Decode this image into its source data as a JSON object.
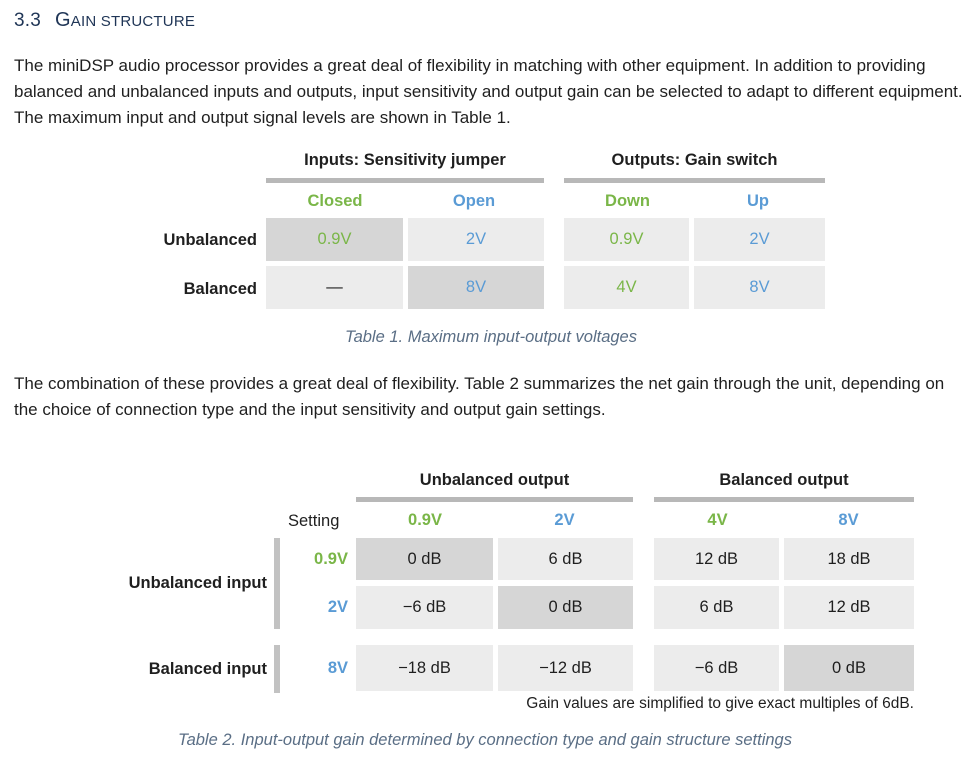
{
  "section": {
    "number": "3.3",
    "title_first": "G",
    "title_rest": "AIN STRUCTURE"
  },
  "paragraphs": [
    "The miniDSP audio processor provides a great deal of flexibility in matching with other equipment. In addition to providing balanced and unbalanced inputs and outputs, input sensitivity and output gain can be selected to adapt to different equipment. The maximum input and output signal levels are shown in Table 1.",
    "The combination of these provides a great deal of flexibility. Table 2 summarizes the net gain through the unit, depending on the choice of connection type and the input sensitivity and output gain settings."
  ],
  "table1": {
    "group_inputs": "Inputs: Sensitivity jumper",
    "group_outputs": "Outputs: Gain switch",
    "col_closed": "Closed",
    "col_open": "Open",
    "col_down": "Down",
    "col_up": "Up",
    "row_unbalanced": "Unbalanced",
    "row_balanced": "Balanced",
    "unbalanced": [
      "0.9V",
      "2V",
      "0.9V",
      "2V"
    ],
    "balanced": [
      "—",
      "8V",
      "4V",
      "8V"
    ],
    "caption": "Table 1. Maximum input-output voltages"
  },
  "table2": {
    "group_unbalanced": "Unbalanced output",
    "group_balanced": "Balanced output",
    "setting_label": "Setting",
    "col_09": "0.9V",
    "col_2": "2V",
    "col_4": "4V",
    "col_8": "8V",
    "row_unbalanced_input": "Unbalanced input",
    "row_balanced_input": "Balanced input",
    "sub_09": "0.9V",
    "sub_2": "2V",
    "sub_8": "8V",
    "row1": [
      "0 dB",
      "6 dB",
      "12 dB",
      "18 dB"
    ],
    "row2": [
      "−6 dB",
      "0 dB",
      "6 dB",
      "12 dB"
    ],
    "row3": [
      "−18 dB",
      "−12 dB",
      "−6 dB",
      "0 dB"
    ],
    "note": "Gain values are simplified to give exact multiples of 6dB.",
    "caption": "Table 2. Input-output gain determined by connection type and gain structure settings"
  },
  "colors": {
    "green": "#7ab648",
    "blue": "#5a9bd5",
    "heading": "#1f3556",
    "caption": "#5a6e85"
  }
}
